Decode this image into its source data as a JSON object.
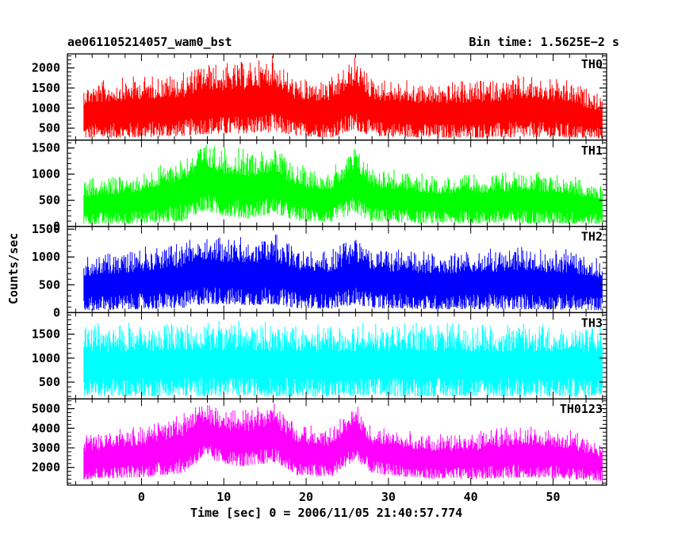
{
  "header": {
    "title": "ae061105214057_wam0_bst",
    "bin_time": "Bin time: 1.5625E−2 s"
  },
  "chart_data": {
    "type": "line",
    "xlabel": "Time [sec] 0 = 2006/11/05 21:40:57.774",
    "ylabel": "Counts/sec",
    "xlim": [
      -9,
      56.5
    ],
    "x_ticks": [
      0,
      10,
      20,
      30,
      40,
      50
    ],
    "grid": false,
    "panels": [
      {
        "name": "TH0",
        "color": "#ff0000",
        "ylim": [
          200,
          2350
        ],
        "y_ticks": [
          500,
          1000,
          1500,
          2000
        ],
        "data_range": [
          -7,
          56
        ],
        "envelope": [
          {
            "t": -7,
            "lo": 250,
            "hi": 1650
          },
          {
            "t": 0,
            "lo": 270,
            "hi": 1850
          },
          {
            "t": 5,
            "lo": 300,
            "hi": 1900
          },
          {
            "t": 7.5,
            "lo": 350,
            "hi": 2200
          },
          {
            "t": 10,
            "lo": 350,
            "hi": 2150
          },
          {
            "t": 13,
            "lo": 370,
            "hi": 2200
          },
          {
            "t": 16,
            "lo": 400,
            "hi": 2350
          },
          {
            "t": 19,
            "lo": 300,
            "hi": 1750
          },
          {
            "t": 23,
            "lo": 270,
            "hi": 1750
          },
          {
            "t": 26,
            "lo": 450,
            "hi": 2350
          },
          {
            "t": 28,
            "lo": 300,
            "hi": 1800
          },
          {
            "t": 35,
            "lo": 260,
            "hi": 1650
          },
          {
            "t": 40,
            "lo": 260,
            "hi": 1700
          },
          {
            "t": 47,
            "lo": 270,
            "hi": 1850
          },
          {
            "t": 52,
            "lo": 260,
            "hi": 1700
          },
          {
            "t": 56,
            "lo": 240,
            "hi": 1350
          }
        ]
      },
      {
        "name": "TH1",
        "color": "#00ff00",
        "ylim": [
          0,
          1650
        ],
        "y_ticks": [
          0,
          500,
          1000,
          1500
        ],
        "data_range": [
          -7,
          56
        ],
        "envelope": [
          {
            "t": -7,
            "lo": 40,
            "hi": 900
          },
          {
            "t": 0,
            "lo": 60,
            "hi": 1050
          },
          {
            "t": 5,
            "lo": 100,
            "hi": 1400
          },
          {
            "t": 7.5,
            "lo": 300,
            "hi": 1650
          },
          {
            "t": 10,
            "lo": 200,
            "hi": 1550
          },
          {
            "t": 13,
            "lo": 150,
            "hi": 1500
          },
          {
            "t": 16,
            "lo": 250,
            "hi": 1550
          },
          {
            "t": 19,
            "lo": 100,
            "hi": 1200
          },
          {
            "t": 23,
            "lo": 80,
            "hi": 1100
          },
          {
            "t": 26,
            "lo": 250,
            "hi": 1600
          },
          {
            "t": 28,
            "lo": 90,
            "hi": 1200
          },
          {
            "t": 35,
            "lo": 60,
            "hi": 1000
          },
          {
            "t": 40,
            "lo": 60,
            "hi": 1000
          },
          {
            "t": 47,
            "lo": 60,
            "hi": 1100
          },
          {
            "t": 52,
            "lo": 50,
            "hi": 1000
          },
          {
            "t": 56,
            "lo": 40,
            "hi": 800
          }
        ]
      },
      {
        "name": "TH2",
        "color": "#0000ff",
        "ylim": [
          0,
          1550
        ],
        "y_ticks": [
          0,
          500,
          1000,
          1500
        ],
        "data_range": [
          -7,
          56
        ],
        "envelope": [
          {
            "t": -7,
            "lo": 40,
            "hi": 1050
          },
          {
            "t": 0,
            "lo": 60,
            "hi": 1200
          },
          {
            "t": 5,
            "lo": 80,
            "hi": 1300
          },
          {
            "t": 7.5,
            "lo": 150,
            "hi": 1500
          },
          {
            "t": 10,
            "lo": 150,
            "hi": 1400
          },
          {
            "t": 13,
            "lo": 130,
            "hi": 1350
          },
          {
            "t": 16,
            "lo": 150,
            "hi": 1450
          },
          {
            "t": 19,
            "lo": 80,
            "hi": 1200
          },
          {
            "t": 23,
            "lo": 70,
            "hi": 1150
          },
          {
            "t": 26,
            "lo": 150,
            "hi": 1450
          },
          {
            "t": 28,
            "lo": 80,
            "hi": 1200
          },
          {
            "t": 35,
            "lo": 60,
            "hi": 1100
          },
          {
            "t": 40,
            "lo": 60,
            "hi": 1150
          },
          {
            "t": 47,
            "lo": 60,
            "hi": 1200
          },
          {
            "t": 52,
            "lo": 50,
            "hi": 1150
          },
          {
            "t": 56,
            "lo": 40,
            "hi": 1000
          }
        ]
      },
      {
        "name": "TH3",
        "color": "#00ffff",
        "ylim": [
          150,
          1950
        ],
        "y_ticks": [
          500,
          1000,
          1500
        ],
        "data_range": [
          -7,
          56
        ],
        "envelope": [
          {
            "t": -7,
            "lo": 200,
            "hi": 1750
          },
          {
            "t": 10,
            "lo": 210,
            "hi": 1800
          },
          {
            "t": 20,
            "lo": 200,
            "hi": 1750
          },
          {
            "t": 30,
            "lo": 200,
            "hi": 1780
          },
          {
            "t": 40,
            "lo": 200,
            "hi": 1760
          },
          {
            "t": 56,
            "lo": 190,
            "hi": 1750
          }
        ]
      },
      {
        "name": "TH0123",
        "color": "#ff00ff",
        "ylim": [
          1100,
          5500
        ],
        "y_ticks": [
          2000,
          3000,
          4000,
          5000
        ],
        "data_range": [
          -7,
          56
        ],
        "envelope": [
          {
            "t": -7,
            "lo": 1400,
            "hi": 3700
          },
          {
            "t": 0,
            "lo": 1500,
            "hi": 4200
          },
          {
            "t": 5,
            "lo": 1700,
            "hi": 4800
          },
          {
            "t": 7.5,
            "lo": 2500,
            "hi": 5500
          },
          {
            "t": 10,
            "lo": 2200,
            "hi": 5000
          },
          {
            "t": 13,
            "lo": 2000,
            "hi": 5100
          },
          {
            "t": 16,
            "lo": 2300,
            "hi": 5400
          },
          {
            "t": 19,
            "lo": 1600,
            "hi": 4300
          },
          {
            "t": 23,
            "lo": 1500,
            "hi": 4100
          },
          {
            "t": 26,
            "lo": 2400,
            "hi": 5450
          },
          {
            "t": 28,
            "lo": 1700,
            "hi": 4200
          },
          {
            "t": 35,
            "lo": 1400,
            "hi": 3800
          },
          {
            "t": 40,
            "lo": 1400,
            "hi": 3800
          },
          {
            "t": 47,
            "lo": 1500,
            "hi": 4300
          },
          {
            "t": 52,
            "lo": 1400,
            "hi": 4000
          },
          {
            "t": 56,
            "lo": 1300,
            "hi": 3300
          }
        ]
      }
    ]
  }
}
